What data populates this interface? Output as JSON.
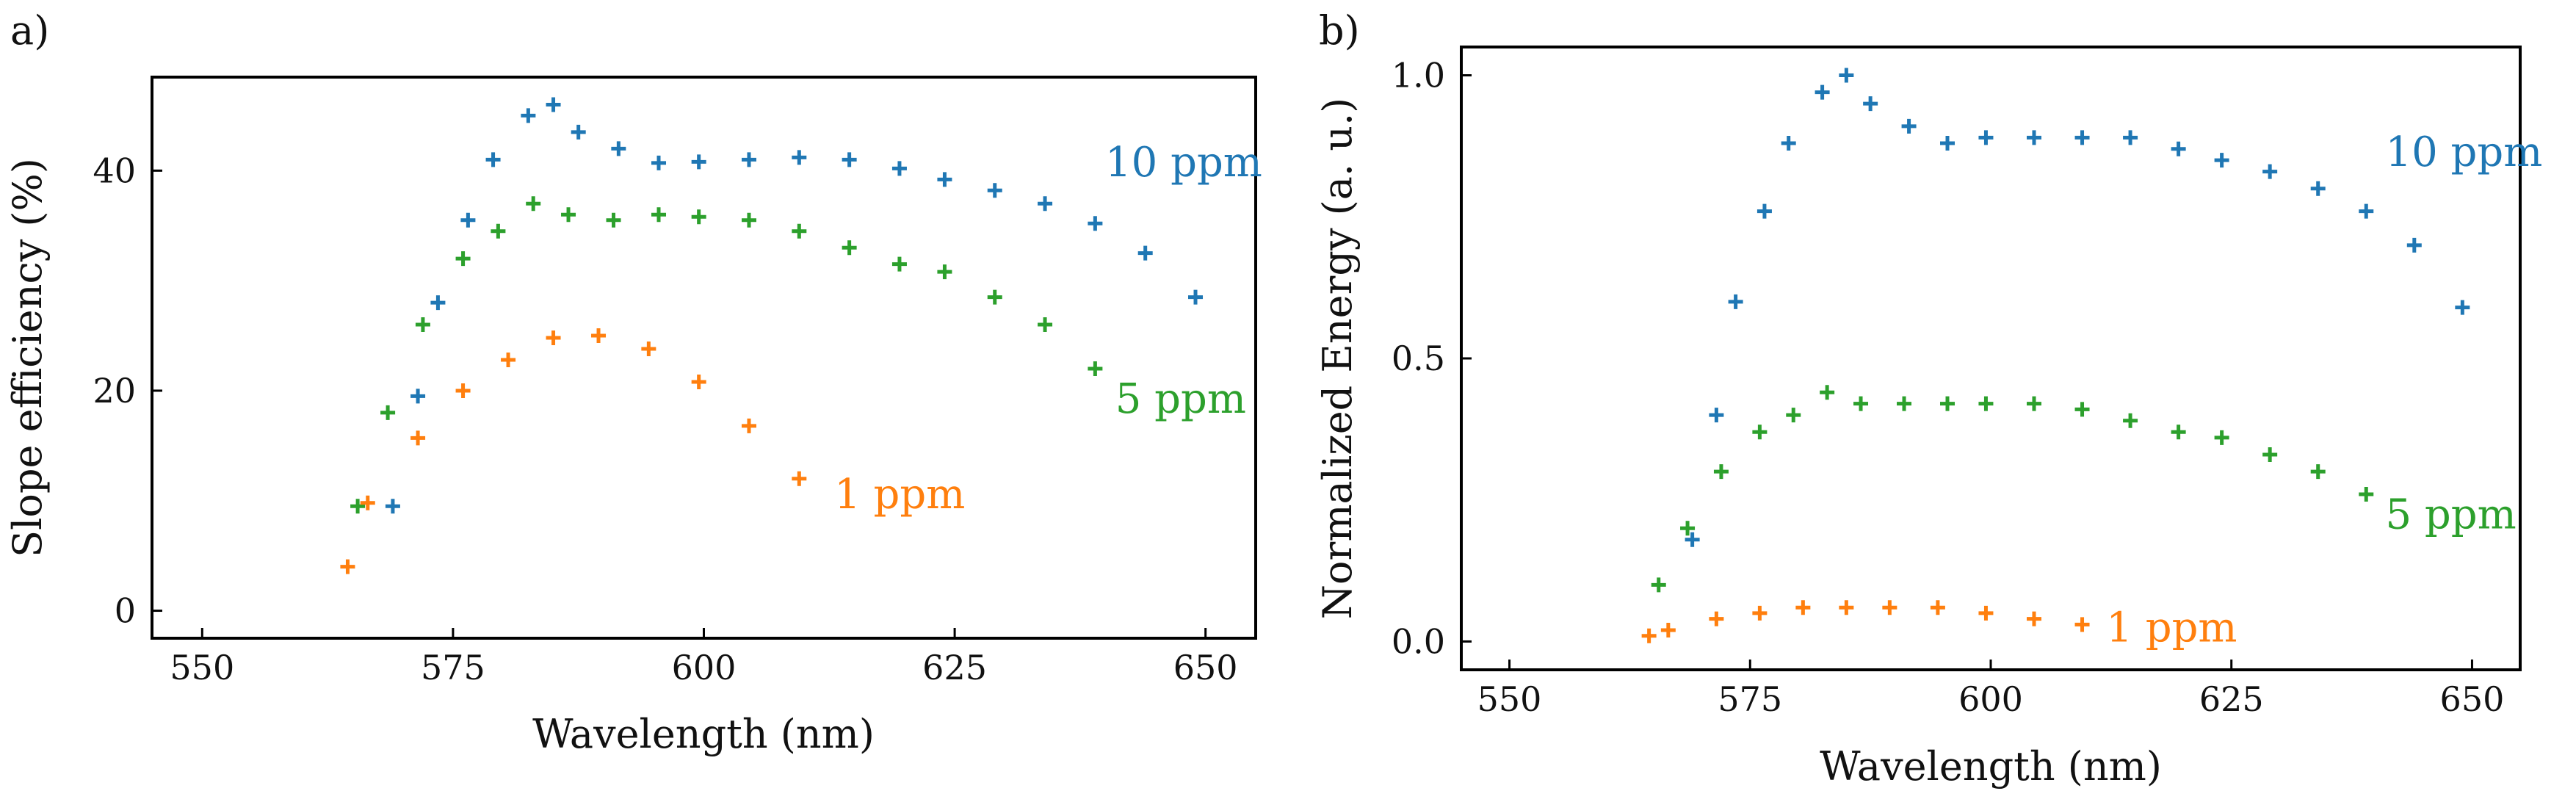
{
  "chart_data": [
    {
      "type": "scatter",
      "panel_label": "a)",
      "xlabel": "Wavelength (nm)",
      "ylabel": "Slope efficiency (%)",
      "xlim": [
        545,
        655
      ],
      "ylim": [
        -2.5,
        48.5
      ],
      "xticks": [
        550,
        575,
        600,
        625,
        650
      ],
      "yticks": [
        0,
        20,
        40
      ],
      "series": [
        {
          "name": "10 ppm",
          "color": "#1f77b4",
          "label_at": [
            640,
            39.5
          ],
          "x": [
            569,
            571.5,
            573.5,
            576.5,
            579,
            582.5,
            585,
            587.5,
            591.5,
            595.5,
            599.5,
            604.5,
            609.5,
            614.5,
            619.5,
            624,
            629,
            634,
            639,
            644,
            649
          ],
          "y": [
            9.5,
            19.5,
            28,
            35.5,
            41,
            45,
            46,
            43.5,
            42,
            40.7,
            40.8,
            41,
            41.2,
            41,
            40.2,
            39.2,
            38.2,
            37,
            35.2,
            32.5,
            28.5
          ]
        },
        {
          "name": "5 ppm",
          "color": "#2ca02c",
          "label_at": [
            641,
            18
          ],
          "x": [
            565.5,
            568.5,
            572,
            576,
            579.5,
            583,
            586.5,
            591,
            595.5,
            599.5,
            604.5,
            609.5,
            614.5,
            619.5,
            624,
            629,
            634,
            639
          ],
          "y": [
            9.5,
            18,
            26,
            32,
            34.5,
            37,
            36,
            35.5,
            36,
            35.8,
            35.5,
            34.5,
            33,
            31.5,
            30.8,
            28.5,
            26,
            22
          ]
        },
        {
          "name": "1 ppm",
          "color": "#ff7f0e",
          "label_at": [
            613,
            9.3
          ],
          "x": [
            564.5,
            566.5,
            571.5,
            576,
            580.5,
            585,
            589.5,
            594.5,
            599.5,
            604.5,
            609.5
          ],
          "y": [
            4,
            9.8,
            15.7,
            20,
            22.8,
            24.8,
            25,
            23.8,
            20.8,
            16.8,
            12
          ]
        }
      ]
    },
    {
      "type": "scatter",
      "panel_label": "b)",
      "xlabel": "Wavelength (nm)",
      "ylabel": "Normalized Energy (a. u.)",
      "xlim": [
        545,
        655
      ],
      "ylim": [
        -0.05,
        1.05
      ],
      "xticks": [
        550,
        575,
        600,
        625,
        650
      ],
      "yticks": [
        0.0,
        0.5,
        1.0
      ],
      "series": [
        {
          "name": "10 ppm",
          "color": "#1f77b4",
          "label_at": [
            641,
            0.84
          ],
          "x": [
            569,
            571.5,
            573.5,
            576.5,
            579,
            582.5,
            585,
            587.5,
            591.5,
            595.5,
            599.5,
            604.5,
            609.5,
            614.5,
            619.5,
            624,
            629,
            634,
            639,
            644,
            649
          ],
          "y": [
            0.18,
            0.4,
            0.6,
            0.76,
            0.88,
            0.97,
            1.0,
            0.95,
            0.91,
            0.88,
            0.89,
            0.89,
            0.89,
            0.89,
            0.87,
            0.85,
            0.83,
            0.8,
            0.76,
            0.7,
            0.59
          ]
        },
        {
          "name": "5 ppm",
          "color": "#2ca02c",
          "label_at": [
            641,
            0.2
          ],
          "x": [
            565.5,
            568.5,
            572,
            576,
            579.5,
            583,
            586.5,
            591,
            595.5,
            599.5,
            604.5,
            609.5,
            614.5,
            619.5,
            624,
            629,
            634,
            639
          ],
          "y": [
            0.1,
            0.2,
            0.3,
            0.37,
            0.4,
            0.44,
            0.42,
            0.42,
            0.42,
            0.42,
            0.42,
            0.41,
            0.39,
            0.37,
            0.36,
            0.33,
            0.3,
            0.26
          ]
        },
        {
          "name": "1 ppm",
          "color": "#ff7f0e",
          "label_at": [
            612,
            0.0
          ],
          "x": [
            564.5,
            566.5,
            571.5,
            576,
            580.5,
            585,
            589.5,
            594.5,
            599.5,
            604.5,
            609.5
          ],
          "y": [
            0.01,
            0.02,
            0.04,
            0.05,
            0.06,
            0.06,
            0.06,
            0.06,
            0.05,
            0.04,
            0.03
          ]
        }
      ]
    }
  ]
}
